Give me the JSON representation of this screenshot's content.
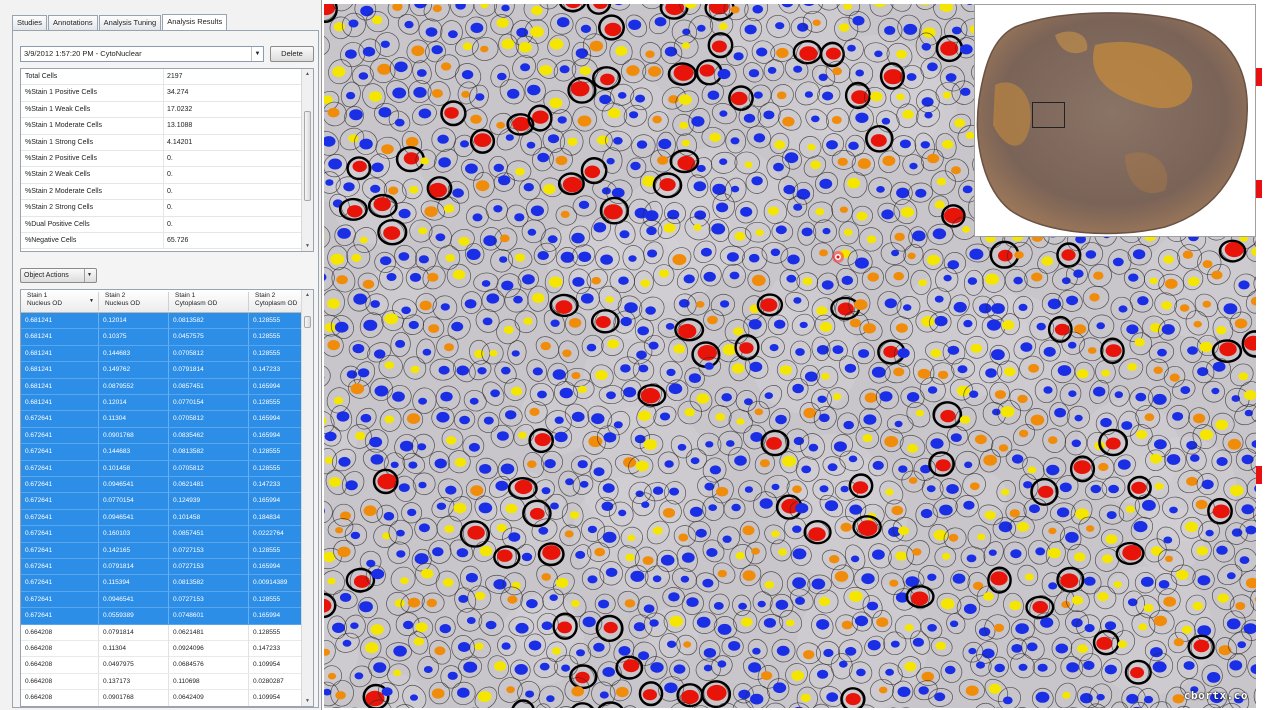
{
  "tabs": [
    {
      "label": "Studies",
      "active": false
    },
    {
      "label": "Annotations",
      "active": false
    },
    {
      "label": "Analysis Tuning",
      "active": false
    },
    {
      "label": "Analysis Results",
      "active": true
    }
  ],
  "results": {
    "selected_run": "3/9/2012 1:57:20 PM - CytoNuclear",
    "delete_label": "Delete"
  },
  "stats": [
    {
      "label": "Total Cells",
      "value": "2197"
    },
    {
      "label": "%Stain 1 Positive Cells",
      "value": "34.274"
    },
    {
      "label": "%Stain 1 Weak Cells",
      "value": "17.0232"
    },
    {
      "label": "%Stain 1 Moderate Cells",
      "value": "13.1088"
    },
    {
      "label": "%Stain 1 Strong Cells",
      "value": "4.14201"
    },
    {
      "label": "%Stain 2 Positive Cells",
      "value": "0."
    },
    {
      "label": "%Stain 2 Weak Cells",
      "value": "0."
    },
    {
      "label": "%Stain 2 Moderate Cells",
      "value": "0."
    },
    {
      "label": "%Stain 2 Strong Cells",
      "value": "0."
    },
    {
      "label": "%Dual Positive Cells",
      "value": "0."
    },
    {
      "label": "%Negative Cells",
      "value": "65.726"
    }
  ],
  "object_actions_label": "Object Actions",
  "table": {
    "headers": [
      [
        "Stain 1",
        "Nucleus OD"
      ],
      [
        "Stain 2",
        "Nucleus OD"
      ],
      [
        "Stain 1",
        "Cytoplasm OD"
      ],
      [
        "Stain 2",
        "Cytoplasm OD"
      ]
    ],
    "rows": [
      {
        "selected": true,
        "cells": [
          "0.681241",
          "0.12014",
          "0.0813582",
          "0.128555"
        ]
      },
      {
        "selected": true,
        "cells": [
          "0.681241",
          "0.10375",
          "0.0457575",
          "0.128555"
        ]
      },
      {
        "selected": true,
        "cells": [
          "0.681241",
          "0.144683",
          "0.0705812",
          "0.128555"
        ]
      },
      {
        "selected": true,
        "cells": [
          "0.681241",
          "0.149762",
          "0.0791814",
          "0.147233"
        ]
      },
      {
        "selected": true,
        "cells": [
          "0.681241",
          "0.0879552",
          "0.0857451",
          "0.165994"
        ]
      },
      {
        "selected": true,
        "cells": [
          "0.681241",
          "0.12014",
          "0.0770154",
          "0.128555"
        ]
      },
      {
        "selected": true,
        "cells": [
          "0.672641",
          "0.11304",
          "0.0705812",
          "0.165994"
        ]
      },
      {
        "selected": true,
        "cells": [
          "0.672641",
          "0.0901768",
          "0.0835462",
          "0.165994"
        ]
      },
      {
        "selected": true,
        "cells": [
          "0.672641",
          "0.144683",
          "0.0813582",
          "0.128555"
        ]
      },
      {
        "selected": true,
        "cells": [
          "0.672641",
          "0.101458",
          "0.0705812",
          "0.128555"
        ]
      },
      {
        "selected": true,
        "cells": [
          "0.672641",
          "0.0946541",
          "0.0621481",
          "0.147233"
        ]
      },
      {
        "selected": true,
        "cells": [
          "0.672641",
          "0.0770154",
          "0.124939",
          "0.165994"
        ]
      },
      {
        "selected": true,
        "cells": [
          "0.672641",
          "0.0946541",
          "0.101458",
          "0.184834"
        ]
      },
      {
        "selected": true,
        "cells": [
          "0.672641",
          "0.160103",
          "0.0857451",
          "0.0222764"
        ]
      },
      {
        "selected": true,
        "cells": [
          "0.672641",
          "0.142165",
          "0.0727153",
          "0.128555"
        ]
      },
      {
        "selected": true,
        "cells": [
          "0.672641",
          "0.0791814",
          "0.0727153",
          "0.165994"
        ]
      },
      {
        "selected": true,
        "cells": [
          "0.672641",
          "0.115394",
          "0.0813582",
          "0.00914389"
        ]
      },
      {
        "selected": true,
        "cells": [
          "0.672641",
          "0.0946541",
          "0.0727153",
          "0.128555"
        ]
      },
      {
        "selected": true,
        "cells": [
          "0.672641",
          "0.0559389",
          "0.0748601",
          "0.165994"
        ]
      },
      {
        "selected": false,
        "cells": [
          "0.664208",
          "0.0791814",
          "0.0621481",
          "0.128555"
        ]
      },
      {
        "selected": false,
        "cells": [
          "0.664208",
          "0.11304",
          "0.0924096",
          "0.147233"
        ]
      },
      {
        "selected": false,
        "cells": [
          "0.664208",
          "0.0497975",
          "0.0684576",
          "0.109954"
        ]
      },
      {
        "selected": false,
        "cells": [
          "0.664208",
          "0.137173",
          "0.110698",
          "0.0280287"
        ]
      },
      {
        "selected": false,
        "cells": [
          "0.664208",
          "0.0901768",
          "0.0642409",
          "0.109954"
        ]
      }
    ]
  },
  "watermark": "cbortx.co",
  "colors": {
    "selection_blue": "#2d8ee8",
    "negative_nucleus": "#1a2ee6",
    "weak_nucleus": "#f5e600",
    "moderate_nucleus": "#f08c0a",
    "strong_nucleus": "#e8140a",
    "tissue_bg": "#c8c5cb"
  }
}
